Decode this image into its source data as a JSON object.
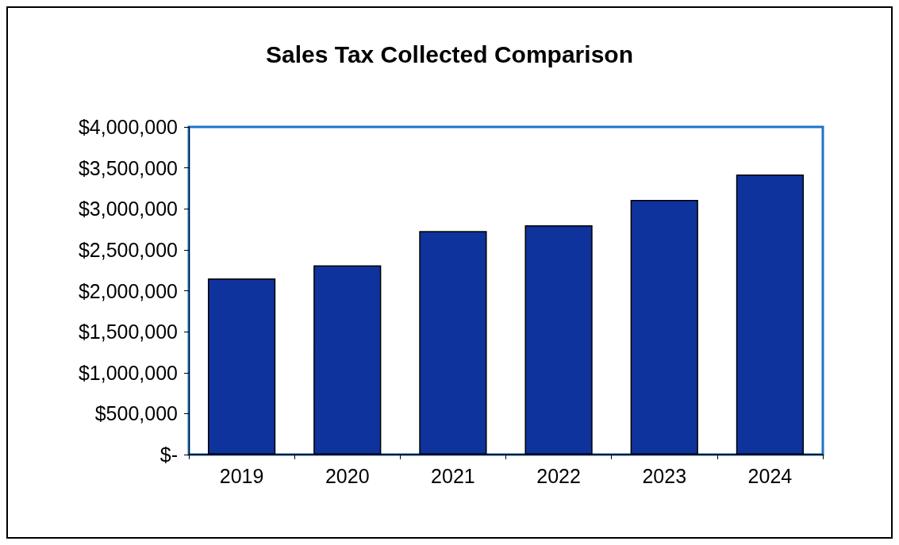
{
  "chart_data": {
    "type": "bar",
    "title": "Sales Tax Collected Comparison",
    "categories": [
      "2019",
      "2020",
      "2021",
      "2022",
      "2023",
      "2024"
    ],
    "values": [
      2150000,
      2310000,
      2730000,
      2800000,
      3110000,
      3420000
    ],
    "color": "#0e339c",
    "ylim": [
      0,
      4000000
    ],
    "yticks": [
      {
        "value": 0,
        "label": "$-"
      },
      {
        "value": 500000,
        "label": "$500,000"
      },
      {
        "value": 1000000,
        "label": "$1,000,000"
      },
      {
        "value": 1500000,
        "label": "$1,500,000"
      },
      {
        "value": 2000000,
        "label": "$2,000,000"
      },
      {
        "value": 2500000,
        "label": "$2,500,000"
      },
      {
        "value": 3000000,
        "label": "$3,000,000"
      },
      {
        "value": 3500000,
        "label": "$3,500,000"
      },
      {
        "value": 4000000,
        "label": "$4,000,000"
      }
    ],
    "grid": false
  }
}
